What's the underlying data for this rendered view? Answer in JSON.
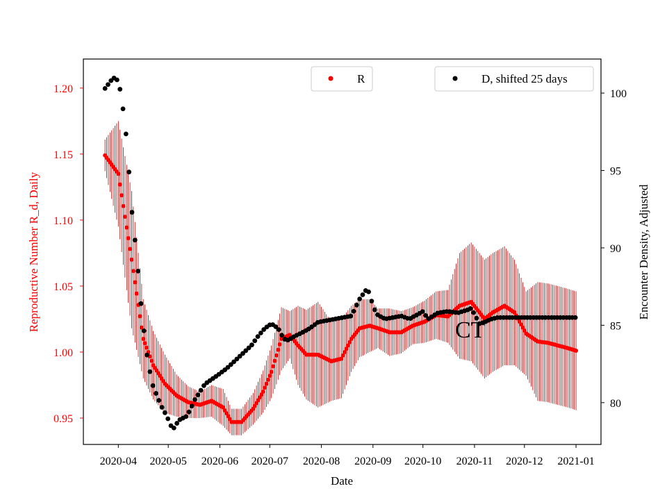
{
  "chart_data": {
    "type": "scatter",
    "title": "",
    "xlabel": "Date",
    "ylabel_left": "Reproductive Number R_d, Daily",
    "ylabel_right": "Encounter Density, Adjusted",
    "annotation": "CT",
    "x_ticks": [
      "2020-04",
      "2020-05",
      "2020-06",
      "2020-07",
      "2020-08",
      "2020-09",
      "2020-10",
      "2020-11",
      "2020-12",
      "2021-01"
    ],
    "x_tick_days": [
      0,
      30,
      61,
      91,
      122,
      153,
      183,
      214,
      244,
      275
    ],
    "xlim_days": [
      -21,
      290
    ],
    "ylim_left": [
      0.93,
      1.222
    ],
    "yticks_left": [
      0.95,
      1.0,
      1.05,
      1.1,
      1.15,
      1.2
    ],
    "ytick_labels_left": [
      "0.95",
      "1.00",
      "1.05",
      "1.10",
      "1.15",
      "1.20"
    ],
    "ylim_right": [
      77.3,
      102.2
    ],
    "yticks_right": [
      80,
      85,
      90,
      95,
      100
    ],
    "ytick_labels_right": [
      "80",
      "85",
      "90",
      "95",
      "100"
    ],
    "colors": {
      "r_series": "#ff0000",
      "errorbar": "#c00000",
      "d_series": "#000000",
      "left_axis": "#ff0000",
      "right_axis": "#000000"
    },
    "series": [
      {
        "name": "R",
        "axis": "left",
        "x_days": [
          -8,
          0,
          8,
          15,
          21,
          28,
          35,
          42,
          49,
          56,
          63,
          68,
          74,
          81,
          87,
          92,
          98,
          103,
          108,
          113,
          120,
          128,
          134,
          140,
          145,
          151,
          156,
          163,
          170,
          177,
          184,
          191,
          198,
          205,
          212,
          217,
          220,
          225,
          232,
          238,
          245,
          252,
          258,
          264,
          270,
          275
        ],
        "values": [
          1.149,
          1.135,
          1.07,
          1.01,
          0.99,
          0.976,
          0.967,
          0.962,
          0.96,
          0.963,
          0.958,
          0.947,
          0.947,
          0.957,
          0.97,
          0.985,
          1.01,
          1.013,
          1.005,
          0.998,
          0.998,
          0.993,
          0.995,
          1.01,
          1.018,
          1.02,
          1.018,
          1.015,
          1.015,
          1.02,
          1.023,
          1.028,
          1.027,
          1.035,
          1.038,
          1.03,
          1.025,
          1.03,
          1.035,
          1.03,
          1.014,
          1.008,
          1.007,
          1.005,
          1.003,
          1.001
        ],
        "error": [
          0.012,
          0.04,
          0.052,
          0.03,
          0.026,
          0.022,
          0.016,
          0.012,
          0.01,
          0.012,
          0.014,
          0.01,
          0.01,
          0.012,
          0.016,
          0.02,
          0.024,
          0.018,
          0.03,
          0.034,
          0.04,
          0.03,
          0.03,
          0.025,
          0.022,
          0.02,
          0.015,
          0.018,
          0.016,
          0.014,
          0.016,
          0.018,
          0.02,
          0.04,
          0.045,
          0.045,
          0.045,
          0.045,
          0.045,
          0.04,
          0.032,
          0.045,
          0.045,
          0.045,
          0.045,
          0.045
        ]
      },
      {
        "name": "D, shifted 25 days",
        "axis": "right",
        "x_days": [
          -8,
          -3,
          0,
          2,
          5,
          8,
          11,
          13,
          15,
          17,
          19,
          21,
          23,
          25,
          27,
          29,
          31,
          33,
          36,
          38,
          40,
          43,
          46,
          49,
          52,
          56,
          60,
          65,
          70,
          75,
          80,
          84,
          88,
          92,
          96,
          99,
          101,
          103,
          106,
          110,
          115,
          120,
          125,
          130,
          135,
          140,
          145,
          149,
          151,
          153,
          155,
          157,
          158,
          160,
          165,
          170,
          175,
          178,
          180,
          183,
          186,
          192,
          198,
          204,
          210,
          212,
          215,
          217,
          220,
          224,
          228,
          235,
          245,
          255,
          265,
          275
        ],
        "values": [
          100.3,
          101,
          100.8,
          99.7,
          97,
          92.5,
          89.5,
          87,
          85,
          83.2,
          82,
          81,
          80.5,
          80,
          79.5,
          79.2,
          78.6,
          78.3,
          78.8,
          79,
          79,
          79.5,
          80.2,
          80.7,
          81.2,
          81.5,
          81.8,
          82.2,
          82.7,
          83.2,
          83.7,
          84.3,
          84.8,
          85.1,
          84.8,
          84.2,
          84,
          84.1,
          84.3,
          84.5,
          84.8,
          85.2,
          85.3,
          85.4,
          85.5,
          85.6,
          86.7,
          87.3,
          87.1,
          86.2,
          85.8,
          85.5,
          85.6,
          85.4,
          85.5,
          85.6,
          85.4,
          85.6,
          85.7,
          85.9,
          85.4,
          85.8,
          85.9,
          85.8,
          86,
          86.1,
          85.5,
          85.1,
          85.2,
          85.4,
          85.5,
          85.5,
          85.5,
          85.5,
          85.5,
          85.5
        ]
      }
    ],
    "legend": [
      {
        "label": "R",
        "color": "#ff0000",
        "position": "top-center"
      },
      {
        "label": "D, shifted 25 days",
        "color": "#000000",
        "position": "top-right"
      }
    ]
  }
}
